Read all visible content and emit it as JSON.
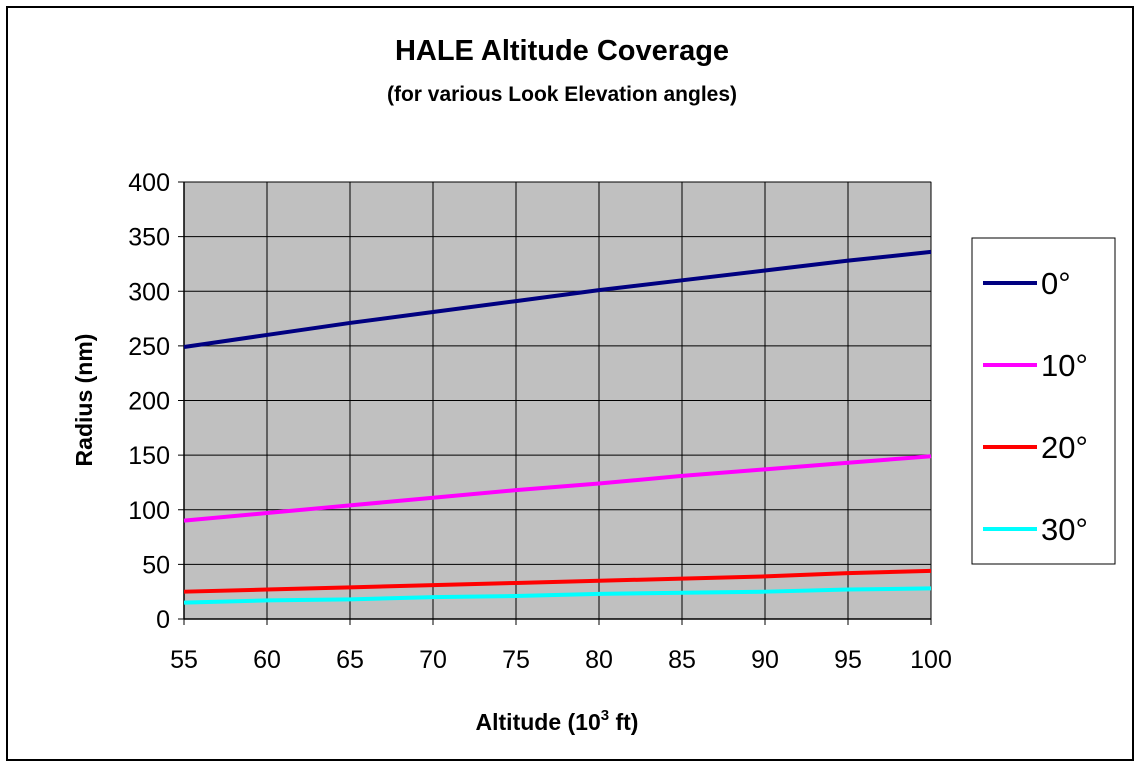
{
  "chart_data": {
    "type": "line",
    "title": "HALE Altitude Coverage",
    "subtitle": "(for various Look Elevation angles)",
    "xlabel_prefix": "Altitude (10",
    "xlabel_sup": "3",
    "xlabel_suffix": " ft)",
    "ylabel": "Radius (nm)",
    "xlim": [
      55,
      100
    ],
    "ylim": [
      0,
      400
    ],
    "x_ticks": [
      55,
      60,
      65,
      70,
      75,
      80,
      85,
      90,
      95,
      100
    ],
    "y_ticks": [
      0,
      50,
      100,
      150,
      200,
      250,
      300,
      350,
      400
    ],
    "grid": true,
    "plot_background": "#c0c0c0",
    "legend_placement": "right",
    "x": [
      55,
      60,
      65,
      70,
      75,
      80,
      85,
      90,
      95,
      100
    ],
    "series": [
      {
        "name": "0°",
        "color": "#000080",
        "values": [
          249,
          260,
          271,
          281,
          291,
          301,
          310,
          319,
          328,
          336
        ]
      },
      {
        "name": "10°",
        "color": "#ff00ff",
        "values": [
          90,
          97,
          104,
          111,
          118,
          124,
          131,
          137,
          143,
          149
        ]
      },
      {
        "name": "20°",
        "color": "#ff0000",
        "values": [
          25,
          27,
          29,
          31,
          33,
          35,
          37,
          39,
          42,
          44
        ]
      },
      {
        "name": "30°",
        "color": "#00ffff",
        "values": [
          15,
          17,
          18,
          20,
          21,
          23,
          24,
          25,
          27,
          28
        ]
      }
    ]
  }
}
